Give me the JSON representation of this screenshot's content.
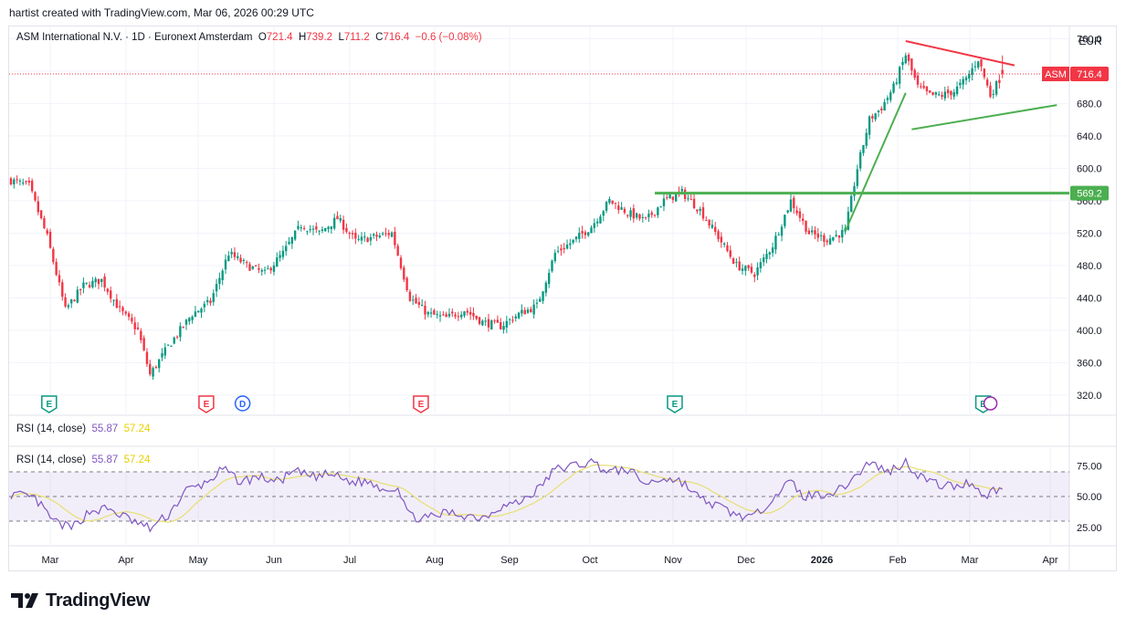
{
  "header_text": "hartist created with TradingView.com, Mar 06, 2026 00:29 UTC",
  "legend": {
    "symbol": "ASM International N.V. · 1D · Euronext Amsterdam",
    "o_label": "O",
    "o": "721.4",
    "h_label": "H",
    "h": "739.2",
    "l_label": "L",
    "l": "711.2",
    "c_label": "C",
    "c": "716.4",
    "change": "−0.6 (−0.08%)"
  },
  "currency": "EUR",
  "price_tag": {
    "label": "ASM",
    "value": "716.4"
  },
  "level_tag": "569.2",
  "rsi_legend": {
    "name": "RSI (14, close)",
    "rsi": "55.87",
    "ma": "57.24"
  },
  "brand": "TradingView",
  "chart_data": [
    {
      "type": "candlestick",
      "xlabels": [
        "Mar",
        "Apr",
        "May",
        "Jun",
        "Jul",
        "Aug",
        "Sep",
        "Oct",
        "Nov",
        "Dec",
        "2026",
        "Feb",
        "Mar",
        "Apr"
      ],
      "ylim": [
        295,
        775
      ],
      "yticks": [
        "760.0",
        "720.0",
        "680.0",
        "640.0",
        "600.0",
        "560.0",
        "520.0",
        "480.0",
        "440.0",
        "400.0",
        "360.0",
        "320.0"
      ],
      "close_anchors": [
        [
          0,
          585
        ],
        [
          6,
          578
        ],
        [
          12,
          515
        ],
        [
          18,
          425
        ],
        [
          24,
          455
        ],
        [
          30,
          462
        ],
        [
          36,
          425
        ],
        [
          42,
          400
        ],
        [
          46,
          345
        ],
        [
          52,
          380
        ],
        [
          60,
          420
        ],
        [
          66,
          435
        ],
        [
          72,
          495
        ],
        [
          78,
          480
        ],
        [
          84,
          470
        ],
        [
          90,
          495
        ],
        [
          96,
          530
        ],
        [
          102,
          520
        ],
        [
          108,
          538
        ],
        [
          114,
          510
        ],
        [
          120,
          515
        ],
        [
          126,
          520
        ],
        [
          132,
          440
        ],
        [
          138,
          420
        ],
        [
          144,
          415
        ],
        [
          150,
          425
        ],
        [
          156,
          410
        ],
        [
          162,
          405
        ],
        [
          168,
          420
        ],
        [
          174,
          430
        ],
        [
          180,
          495
        ],
        [
          186,
          510
        ],
        [
          192,
          528
        ],
        [
          198,
          560
        ],
        [
          204,
          545
        ],
        [
          210,
          535
        ],
        [
          216,
          560
        ],
        [
          222,
          570
        ],
        [
          228,
          548
        ],
        [
          234,
          515
        ],
        [
          240,
          480
        ],
        [
          246,
          470
        ],
        [
          252,
          505
        ],
        [
          258,
          560
        ],
        [
          264,
          520
        ],
        [
          270,
          512
        ],
        [
          276,
          522
        ],
        [
          280,
          600
        ],
        [
          284,
          660
        ],
        [
          288,
          675
        ],
        [
          292,
          700
        ],
        [
          296,
          740
        ],
        [
          300,
          700
        ],
        [
          304,
          690
        ],
        [
          308,
          690
        ],
        [
          312,
          695
        ],
        [
          316,
          710
        ],
        [
          320,
          735
        ],
        [
          324,
          690
        ],
        [
          328,
          716.4
        ]
      ],
      "ohlc_last": {
        "open": 721.4,
        "high": 739.2,
        "low": 711.2,
        "close": 716.4
      },
      "last_price": 716.4,
      "horizontal_level": 569.2,
      "trendlines": [
        {
          "name": "resistance",
          "color": "#f23645",
          "from": [
            296,
            757
          ],
          "to": [
            332,
            727
          ]
        },
        {
          "name": "support-lower",
          "color": "#4caf50",
          "from": [
            298,
            648
          ],
          "to": [
            346,
            678
          ]
        },
        {
          "name": "rise-line",
          "color": "#4caf50",
          "from": [
            276,
            522
          ],
          "to": [
            296,
            693
          ]
        }
      ],
      "events": [
        {
          "label": "E",
          "type": "earnings-green",
          "i": 9
        },
        {
          "label": "E",
          "type": "earnings-red",
          "i": 61
        },
        {
          "label": "D",
          "type": "dividend",
          "i": 73
        },
        {
          "label": "E",
          "type": "earnings-red",
          "i": 132
        },
        {
          "label": "E",
          "type": "earnings-green",
          "i": 216
        },
        {
          "label": "E",
          "type": "earnings-green",
          "i": 318
        }
      ]
    },
    {
      "type": "line",
      "name": "RSI (14, close)",
      "ylim": [
        10,
        90
      ],
      "yticks": [
        "75.00",
        "50.00",
        "25.00"
      ],
      "levels": [
        70,
        50,
        30
      ],
      "rsi_anchors": [
        [
          0,
          52
        ],
        [
          8,
          48
        ],
        [
          14,
          30
        ],
        [
          20,
          24
        ],
        [
          26,
          38
        ],
        [
          32,
          40
        ],
        [
          38,
          33
        ],
        [
          42,
          28
        ],
        [
          46,
          24
        ],
        [
          52,
          35
        ],
        [
          58,
          55
        ],
        [
          64,
          60
        ],
        [
          70,
          72
        ],
        [
          76,
          62
        ],
        [
          82,
          66
        ],
        [
          88,
          62
        ],
        [
          94,
          70
        ],
        [
          100,
          66
        ],
        [
          106,
          68
        ],
        [
          112,
          62
        ],
        [
          118,
          62
        ],
        [
          124,
          56
        ],
        [
          128,
          58
        ],
        [
          132,
          34
        ],
        [
          138,
          32
        ],
        [
          144,
          37
        ],
        [
          150,
          35
        ],
        [
          156,
          33
        ],
        [
          162,
          42
        ],
        [
          168,
          45
        ],
        [
          174,
          55
        ],
        [
          180,
          72
        ],
        [
          186,
          75
        ],
        [
          192,
          78
        ],
        [
          198,
          70
        ],
        [
          204,
          72
        ],
        [
          210,
          60
        ],
        [
          216,
          65
        ],
        [
          222,
          62
        ],
        [
          228,
          48
        ],
        [
          234,
          42
        ],
        [
          240,
          35
        ],
        [
          246,
          33
        ],
        [
          252,
          50
        ],
        [
          258,
          62
        ],
        [
          262,
          50
        ],
        [
          268,
          52
        ],
        [
          274,
          55
        ],
        [
          280,
          68
        ],
        [
          284,
          78
        ],
        [
          290,
          70
        ],
        [
          296,
          78
        ],
        [
          300,
          68
        ],
        [
          306,
          60
        ],
        [
          312,
          58
        ],
        [
          318,
          62
        ],
        [
          322,
          50
        ],
        [
          326,
          56
        ],
        [
          328,
          55.87
        ]
      ],
      "ma_last": 57.24
    }
  ]
}
